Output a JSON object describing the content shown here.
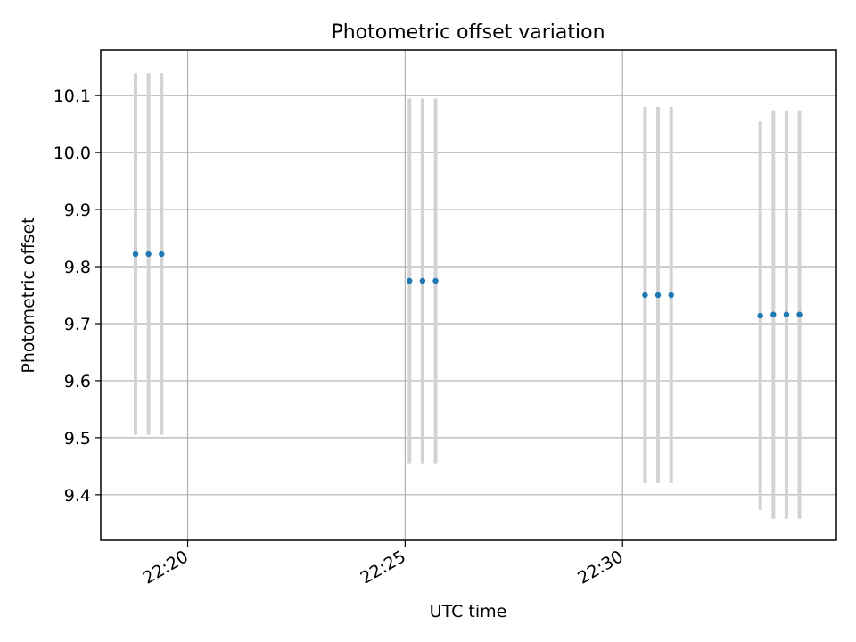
{
  "colors": {
    "point": "#1f77b4",
    "errorbar": "#d3d3d3",
    "grid": "#b0b0b0",
    "axis": "#000000",
    "background": "#ffffff"
  },
  "chart_data": {
    "type": "scatter",
    "title": "Photometric offset variation",
    "xlabel": "UTC time",
    "ylabel": "Photometric offset",
    "x_is_time": true,
    "xlim": [
      "22:18:00",
      "22:34:55"
    ],
    "ylim": [
      9.32,
      10.18
    ],
    "xticks": [
      "22:20",
      "22:25",
      "22:30"
    ],
    "yticks": [
      "9.4",
      "9.5",
      "9.6",
      "9.7",
      "9.8",
      "9.9",
      "10.0",
      "10.1"
    ],
    "grid": true,
    "errorbars": true,
    "series": [
      {
        "points": [
          {
            "x": "22:18:48",
            "y": 9.822,
            "ylow": 9.505,
            "yhigh": 10.139
          },
          {
            "x": "22:19:06",
            "y": 9.822,
            "ylow": 9.505,
            "yhigh": 10.139
          },
          {
            "x": "22:19:24",
            "y": 9.822,
            "ylow": 9.505,
            "yhigh": 10.139
          },
          {
            "x": "22:25:06",
            "y": 9.775,
            "ylow": 9.455,
            "yhigh": 10.095
          },
          {
            "x": "22:25:24",
            "y": 9.775,
            "ylow": 9.455,
            "yhigh": 10.095
          },
          {
            "x": "22:25:42",
            "y": 9.775,
            "ylow": 9.455,
            "yhigh": 10.095
          },
          {
            "x": "22:30:31",
            "y": 9.75,
            "ylow": 9.42,
            "yhigh": 10.08
          },
          {
            "x": "22:30:49",
            "y": 9.75,
            "ylow": 9.42,
            "yhigh": 10.08
          },
          {
            "x": "22:31:07",
            "y": 9.75,
            "ylow": 9.42,
            "yhigh": 10.08
          },
          {
            "x": "22:33:10",
            "y": 9.714,
            "ylow": 9.373,
            "yhigh": 10.055
          },
          {
            "x": "22:33:28",
            "y": 9.716,
            "ylow": 9.358,
            "yhigh": 10.074
          },
          {
            "x": "22:33:46",
            "y": 9.716,
            "ylow": 9.358,
            "yhigh": 10.074
          },
          {
            "x": "22:34:04",
            "y": 9.716,
            "ylow": 9.358,
            "yhigh": 10.074
          }
        ]
      }
    ]
  }
}
